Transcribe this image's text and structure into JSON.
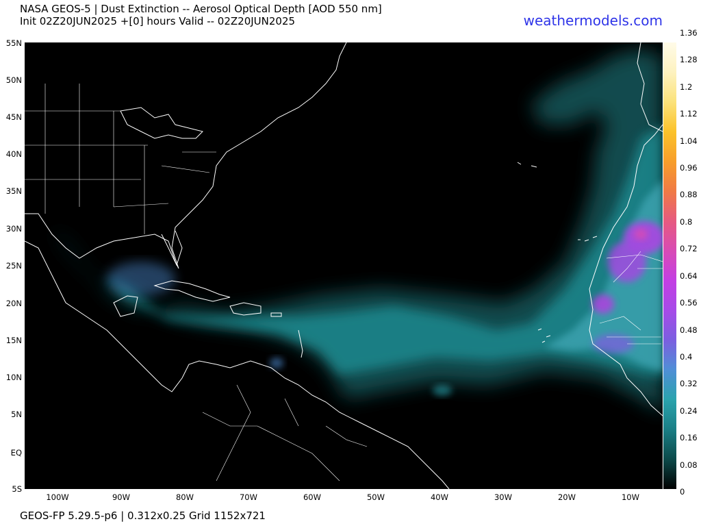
{
  "header": {
    "title_line1": "NASA GEOS-5 | Dust Extinction -- Aerosol Optical Depth [AOD 550 nm]",
    "title_line2": "Init 02Z20JUN2025 +[0] hours Valid -- 02Z20JUN2025",
    "brand": "weathermodels.com",
    "brand_color": "#2f35e8"
  },
  "map": {
    "background_color": "#000000",
    "coastline_color": "#ffffff",
    "lat_labels": [
      "55N",
      "50N",
      "45N",
      "40N",
      "35N",
      "30N",
      "25N",
      "20N",
      "15N",
      "10N",
      "5N",
      "EQ",
      "5S"
    ],
    "lon_labels": [
      "100W",
      "90W",
      "80W",
      "70W",
      "60W",
      "50W",
      "40W",
      "30W",
      "20W",
      "10W"
    ]
  },
  "colorbar": {
    "labels": [
      "1.36",
      "1.28",
      "1.2",
      "1.12",
      "1.04",
      "0.96",
      "0.88",
      "0.8",
      "0.72",
      "0.64",
      "0.56",
      "0.48",
      "0.4",
      "0.32",
      "0.24",
      "0.16",
      "0.08",
      "0"
    ],
    "colors": [
      "#000000",
      "#0c4a4a",
      "#1a7e85",
      "#2aa3ad",
      "#4f8fd6",
      "#7b5fe0",
      "#a64be8",
      "#c33fe3",
      "#d84bb5",
      "#e65a80",
      "#f07a45",
      "#f79e2a",
      "#fbc22a",
      "#fbe27a",
      "#fdf2c0",
      "#fffbe8"
    ]
  },
  "footer": {
    "text": "GEOS-FP 5.29.5-p6 | 0.312x0.25 Grid 1152x721"
  }
}
